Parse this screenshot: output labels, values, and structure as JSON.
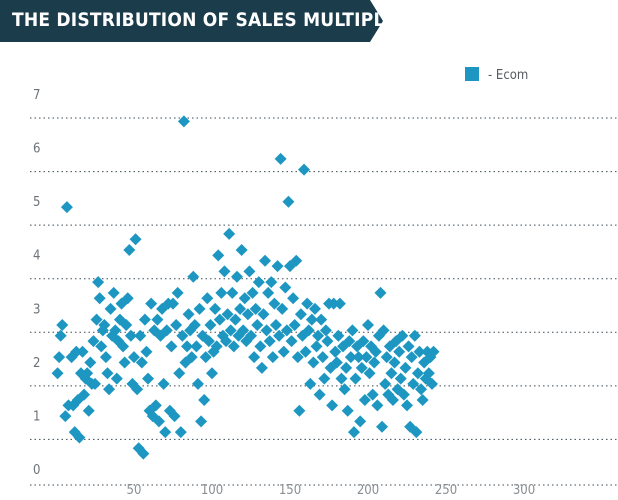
{
  "header": {
    "title": "THE DISTRIBUTION OF SALES MULTIPLES",
    "banner_color": "#1b3c4b"
  },
  "chart_data": {
    "type": "scatter",
    "title": "THE DISTRIBUTION OF SALES MULTIPLES",
    "xlabel": "",
    "ylabel": "",
    "xlim": [
      0,
      360
    ],
    "ylim": [
      0,
      7
    ],
    "x_ticks": [
      50,
      100,
      150,
      200,
      250,
      300
    ],
    "y_ticks": [
      0,
      1,
      2,
      3,
      4,
      5,
      6,
      7
    ],
    "grid": "horizontal dotted",
    "legend_position": "top-right",
    "marker": "diamond",
    "series": [
      {
        "name": "- Ecom",
        "color": "#1d97c1",
        "points": [
          [
            1,
            1.9
          ],
          [
            2,
            2.2
          ],
          [
            3,
            2.6
          ],
          [
            4,
            2.8
          ],
          [
            6,
            1.1
          ],
          [
            7,
            5.0
          ],
          [
            8,
            1.3
          ],
          [
            10,
            2.2
          ],
          [
            11,
            1.3
          ],
          [
            12,
            0.8
          ],
          [
            13,
            2.3
          ],
          [
            14,
            1.4
          ],
          [
            15,
            0.7
          ],
          [
            16,
            1.9
          ],
          [
            17,
            2.3
          ],
          [
            18,
            1.5
          ],
          [
            19,
            1.8
          ],
          [
            20,
            1.9
          ],
          [
            21,
            1.2
          ],
          [
            22,
            2.1
          ],
          [
            23,
            1.7
          ],
          [
            24,
            2.5
          ],
          [
            25,
            1.7
          ],
          [
            26,
            2.9
          ],
          [
            27,
            3.6
          ],
          [
            28,
            3.3
          ],
          [
            29,
            2.4
          ],
          [
            30,
            2.7
          ],
          [
            31,
            2.8
          ],
          [
            32,
            2.2
          ],
          [
            33,
            1.9
          ],
          [
            34,
            1.6
          ],
          [
            35,
            3.1
          ],
          [
            36,
            2.6
          ],
          [
            37,
            3.4
          ],
          [
            38,
            2.7
          ],
          [
            39,
            1.8
          ],
          [
            40,
            2.5
          ],
          [
            41,
            2.9
          ],
          [
            42,
            3.2
          ],
          [
            43,
            2.4
          ],
          [
            44,
            2.1
          ],
          [
            45,
            2.8
          ],
          [
            46,
            3.3
          ],
          [
            47,
            4.2
          ],
          [
            48,
            2.6
          ],
          [
            49,
            1.7
          ],
          [
            50,
            2.2
          ],
          [
            51,
            4.4
          ],
          [
            52,
            1.6
          ],
          [
            53,
            0.5
          ],
          [
            54,
            2.6
          ],
          [
            55,
            2.1
          ],
          [
            56,
            0.4
          ],
          [
            57,
            2.9
          ],
          [
            58,
            2.3
          ],
          [
            59,
            1.8
          ],
          [
            60,
            1.2
          ],
          [
            61,
            3.2
          ],
          [
            62,
            1.1
          ],
          [
            63,
            2.7
          ],
          [
            64,
            1.3
          ],
          [
            65,
            2.9
          ],
          [
            66,
            1.0
          ],
          [
            67,
            2.6
          ],
          [
            68,
            3.1
          ],
          [
            69,
            1.7
          ],
          [
            70,
            0.8
          ],
          [
            71,
            2.7
          ],
          [
            72,
            3.2
          ],
          [
            73,
            1.2
          ],
          [
            74,
            2.4
          ],
          [
            75,
            3.2
          ],
          [
            76,
            1.1
          ],
          [
            77,
            2.8
          ],
          [
            78,
            3.4
          ],
          [
            79,
            1.9
          ],
          [
            80,
            0.8
          ],
          [
            81,
            2.6
          ],
          [
            82,
            6.6
          ],
          [
            83,
            2.1
          ],
          [
            84,
            2.4
          ],
          [
            85,
            3.0
          ],
          [
            86,
            2.7
          ],
          [
            87,
            2.2
          ],
          [
            88,
            3.7
          ],
          [
            89,
            2.8
          ],
          [
            90,
            2.4
          ],
          [
            91,
            1.7
          ],
          [
            92,
            3.1
          ],
          [
            93,
            1.0
          ],
          [
            94,
            2.6
          ],
          [
            95,
            1.4
          ],
          [
            96,
            2.2
          ],
          [
            97,
            3.3
          ],
          [
            98,
            2.5
          ],
          [
            99,
            2.8
          ],
          [
            100,
            1.9
          ],
          [
            101,
            2.3
          ],
          [
            102,
            3.1
          ],
          [
            103,
            2.4
          ],
          [
            104,
            4.1
          ],
          [
            105,
            2.9
          ],
          [
            106,
            3.4
          ],
          [
            107,
            2.6
          ],
          [
            108,
            3.8
          ],
          [
            109,
            2.5
          ],
          [
            110,
            3.0
          ],
          [
            111,
            4.5
          ],
          [
            112,
            2.7
          ],
          [
            113,
            3.4
          ],
          [
            114,
            2.4
          ],
          [
            115,
            2.9
          ],
          [
            116,
            3.7
          ],
          [
            117,
            2.6
          ],
          [
            118,
            3.1
          ],
          [
            119,
            4.2
          ],
          [
            120,
            2.7
          ],
          [
            121,
            3.3
          ],
          [
            122,
            2.5
          ],
          [
            123,
            3.0
          ],
          [
            124,
            3.8
          ],
          [
            125,
            2.6
          ],
          [
            126,
            3.4
          ],
          [
            127,
            2.2
          ],
          [
            128,
            3.1
          ],
          [
            129,
            2.8
          ],
          [
            130,
            3.6
          ],
          [
            131,
            2.4
          ],
          [
            132,
            2.0
          ],
          [
            133,
            3.0
          ],
          [
            134,
            4.0
          ],
          [
            135,
            2.7
          ],
          [
            136,
            3.4
          ],
          [
            137,
            2.5
          ],
          [
            138,
            3.6
          ],
          [
            139,
            2.2
          ],
          [
            140,
            3.2
          ],
          [
            141,
            2.8
          ],
          [
            142,
            3.9
          ],
          [
            143,
            2.6
          ],
          [
            144,
            5.9
          ],
          [
            145,
            3.1
          ],
          [
            146,
            2.3
          ],
          [
            147,
            3.5
          ],
          [
            148,
            2.7
          ],
          [
            149,
            5.1
          ],
          [
            150,
            3.9
          ],
          [
            151,
            2.5
          ],
          [
            152,
            3.3
          ],
          [
            153,
            2.8
          ],
          [
            154,
            4.0
          ],
          [
            155,
            2.2
          ],
          [
            156,
            1.2
          ],
          [
            157,
            3.0
          ],
          [
            158,
            2.6
          ],
          [
            159,
            5.7
          ],
          [
            160,
            2.3
          ],
          [
            161,
            3.2
          ],
          [
            162,
            2.7
          ],
          [
            163,
            1.7
          ],
          [
            164,
            2.9
          ],
          [
            165,
            2.1
          ],
          [
            166,
            3.1
          ],
          [
            167,
            2.4
          ],
          [
            168,
            2.6
          ],
          [
            169,
            1.5
          ],
          [
            170,
            2.9
          ],
          [
            171,
            2.2
          ],
          [
            172,
            1.8
          ],
          [
            173,
            2.7
          ],
          [
            174,
            2.5
          ],
          [
            175,
            3.2
          ],
          [
            176,
            2.0
          ],
          [
            177,
            1.3
          ],
          [
            178,
            3.2
          ],
          [
            179,
            2.3
          ],
          [
            180,
            2.1
          ],
          [
            181,
            2.6
          ],
          [
            182,
            3.2
          ],
          [
            183,
            1.8
          ],
          [
            184,
            2.4
          ],
          [
            185,
            1.6
          ],
          [
            186,
            2.0
          ],
          [
            187,
            1.2
          ],
          [
            188,
            2.5
          ],
          [
            189,
            2.2
          ],
          [
            190,
            2.7
          ],
          [
            191,
            0.8
          ],
          [
            192,
            1.8
          ],
          [
            193,
            2.4
          ],
          [
            194,
            2.2
          ],
          [
            195,
            1.0
          ],
          [
            196,
            2.0
          ],
          [
            197,
            2.5
          ],
          [
            198,
            1.4
          ],
          [
            199,
            2.2
          ],
          [
            200,
            2.8
          ],
          [
            201,
            1.9
          ],
          [
            202,
            2.4
          ],
          [
            203,
            1.5
          ],
          [
            204,
            2.1
          ],
          [
            205,
            2.3
          ],
          [
            206,
            1.3
          ],
          [
            207,
            2.6
          ],
          [
            208,
            3.4
          ],
          [
            209,
            0.9
          ],
          [
            210,
            2.7
          ],
          [
            211,
            1.7
          ],
          [
            212,
            2.2
          ],
          [
            213,
            1.5
          ],
          [
            214,
            2.4
          ],
          [
            215,
            1.9
          ],
          [
            216,
            1.4
          ],
          [
            217,
            2.1
          ],
          [
            218,
            2.5
          ],
          [
            219,
            1.6
          ],
          [
            220,
            2.3
          ],
          [
            221,
            1.8
          ],
          [
            222,
            2.6
          ],
          [
            223,
            1.5
          ],
          [
            224,
            2.0
          ],
          [
            225,
            1.3
          ],
          [
            226,
            2.4
          ],
          [
            227,
            0.9
          ],
          [
            228,
            2.2
          ],
          [
            229,
            1.7
          ],
          [
            230,
            2.6
          ],
          [
            231,
            0.8
          ],
          [
            232,
            1.9
          ],
          [
            233,
            2.3
          ],
          [
            234,
            1.6
          ],
          [
            235,
            1.4
          ],
          [
            236,
            2.1
          ],
          [
            237,
            1.8
          ],
          [
            238,
            2.3
          ],
          [
            239,
            1.9
          ],
          [
            240,
            2.2
          ],
          [
            241,
            1.7
          ],
          [
            242,
            2.3
          ]
        ]
      }
    ]
  }
}
